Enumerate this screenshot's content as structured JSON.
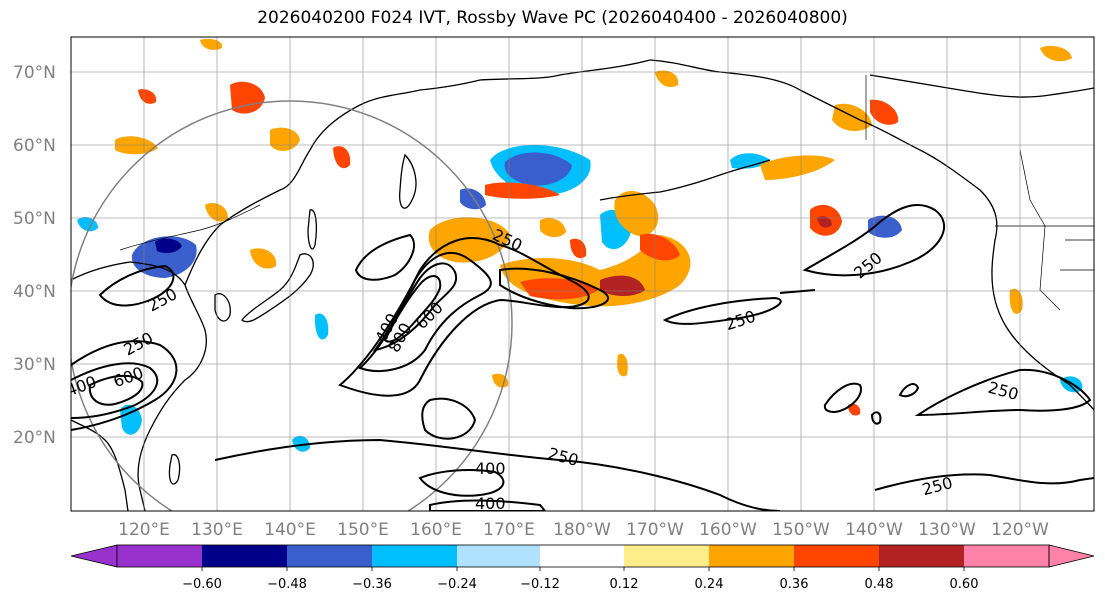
{
  "title": "2026040200 F024 IVT, Rossby Wave PC (2026040400 - 2026040800)",
  "lat_labels": [
    "70°N",
    "60°N",
    "50°N",
    "40°N",
    "30°N",
    "20°N"
  ],
  "lon_labels": [
    "120°E",
    "130°E",
    "140°E",
    "150°E",
    "160°E",
    "170°E",
    "180°W",
    "170°W",
    "160°W",
    "150°W",
    "140°W",
    "130°W",
    "120°W"
  ],
  "contour_labels": [
    "250",
    "250",
    "250",
    "250",
    "250",
    "250",
    "250",
    "400",
    "400",
    "400",
    "600",
    "600",
    "800",
    "400",
    "250"
  ],
  "colorbar": {
    "ticks": [
      "−0.60",
      "−0.48",
      "−0.36",
      "−0.24",
      "−0.12",
      "0.12",
      "0.24",
      "0.36",
      "0.48",
      "0.60"
    ],
    "colors": [
      "#9932CC",
      "#00008B",
      "#3A5FCD",
      "#00BFFF",
      "#B0E2FF",
      "#FFFFFF",
      "#FFEC8B",
      "#FFA500",
      "#FF4500",
      "#B22222",
      "#FF82AB"
    ]
  },
  "map": {
    "lat_range": [
      10,
      75
    ],
    "lon_range": [
      110,
      250
    ],
    "contour_levels": [
      250,
      400,
      600,
      800
    ],
    "shading_levels": [
      -0.6,
      -0.48,
      -0.36,
      -0.24,
      -0.12,
      0.12,
      0.24,
      0.36,
      0.48,
      0.6
    ],
    "gridlines": true
  }
}
